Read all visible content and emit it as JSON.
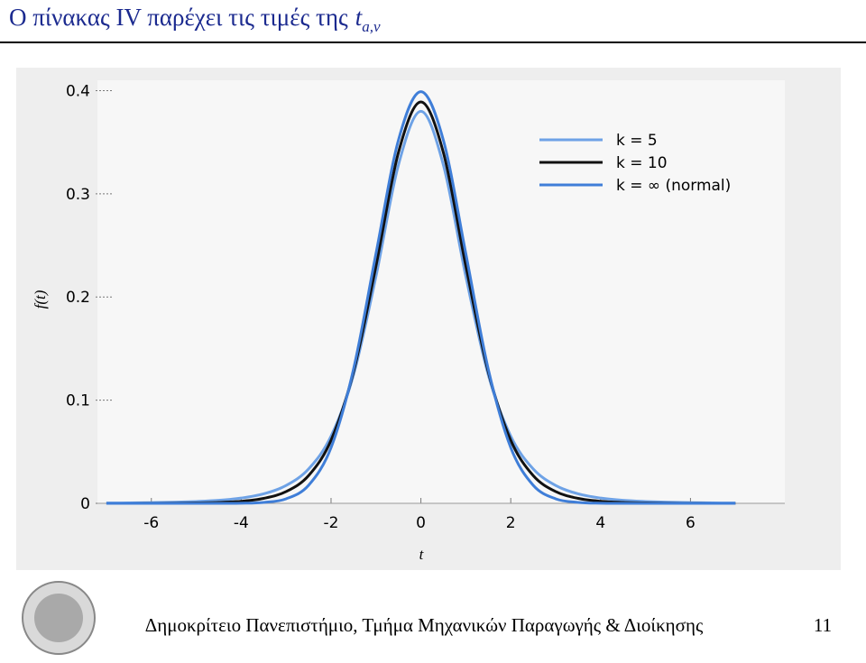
{
  "slide": {
    "title": "Ο πίνακας IV παρέχει τις τιμές της",
    "title_symbol": "t",
    "title_subscript": "a,ν",
    "footer": "Δημοκρίτειο Πανεπιστήμιο, Τμήμα Μηχανικών Παραγωγής & Διοίκησης",
    "page_number": "11"
  },
  "chart_data": {
    "type": "line",
    "x_label": "t",
    "y_label": "f(t)",
    "x": [
      -7,
      -6.5,
      -6,
      -5.5,
      -5,
      -4.5,
      -4,
      -3.5,
      -3,
      -2.5,
      -2,
      -1.5,
      -1,
      -0.5,
      0,
      0.5,
      1,
      1.5,
      2,
      2.5,
      3,
      3.5,
      4,
      4.5,
      5,
      5.5,
      6,
      6.5,
      7
    ],
    "series": [
      {
        "name": "k = 5",
        "color": "#6ea2e6",
        "values": [
          0.0003,
          0.0004,
          0.0007,
          0.0011,
          0.0018,
          0.0029,
          0.0051,
          0.0092,
          0.0173,
          0.0333,
          0.0651,
          0.1245,
          0.22,
          0.328,
          0.38,
          0.328,
          0.22,
          0.1245,
          0.0651,
          0.0333,
          0.0173,
          0.0092,
          0.0051,
          0.0029,
          0.0018,
          0.0011,
          0.0007,
          0.0004,
          0.0003
        ]
      },
      {
        "name": "k = 10",
        "color": "#111111",
        "values": [
          0,
          0,
          0.0001,
          0.0002,
          0.0004,
          0.0009,
          0.002,
          0.0048,
          0.0114,
          0.0269,
          0.0611,
          0.1275,
          0.23,
          0.34,
          0.389,
          0.34,
          0.23,
          0.1275,
          0.0611,
          0.0269,
          0.0114,
          0.0048,
          0.002,
          0.0009,
          0.0004,
          0.0002,
          0.0001,
          0,
          0
        ]
      },
      {
        "name": "k = ∞ (normal)",
        "color": "#3f7ed8",
        "values": [
          0,
          0,
          0,
          0,
          0,
          0,
          0.0001,
          0.0009,
          0.0044,
          0.0175,
          0.054,
          0.13,
          0.242,
          0.352,
          0.399,
          0.352,
          0.242,
          0.13,
          0.054,
          0.0175,
          0.0044,
          0.0009,
          0.0001,
          0,
          0,
          0,
          0,
          0,
          0
        ]
      }
    ],
    "xlim": [
      -7.2,
      8.1
    ],
    "ylim": [
      0,
      0.41
    ],
    "xticks": [
      -6,
      -4,
      -2,
      0,
      2,
      4,
      6
    ],
    "yticks": [
      0,
      0.1,
      0.2,
      0.3,
      0.4
    ],
    "legend": "upper right"
  }
}
